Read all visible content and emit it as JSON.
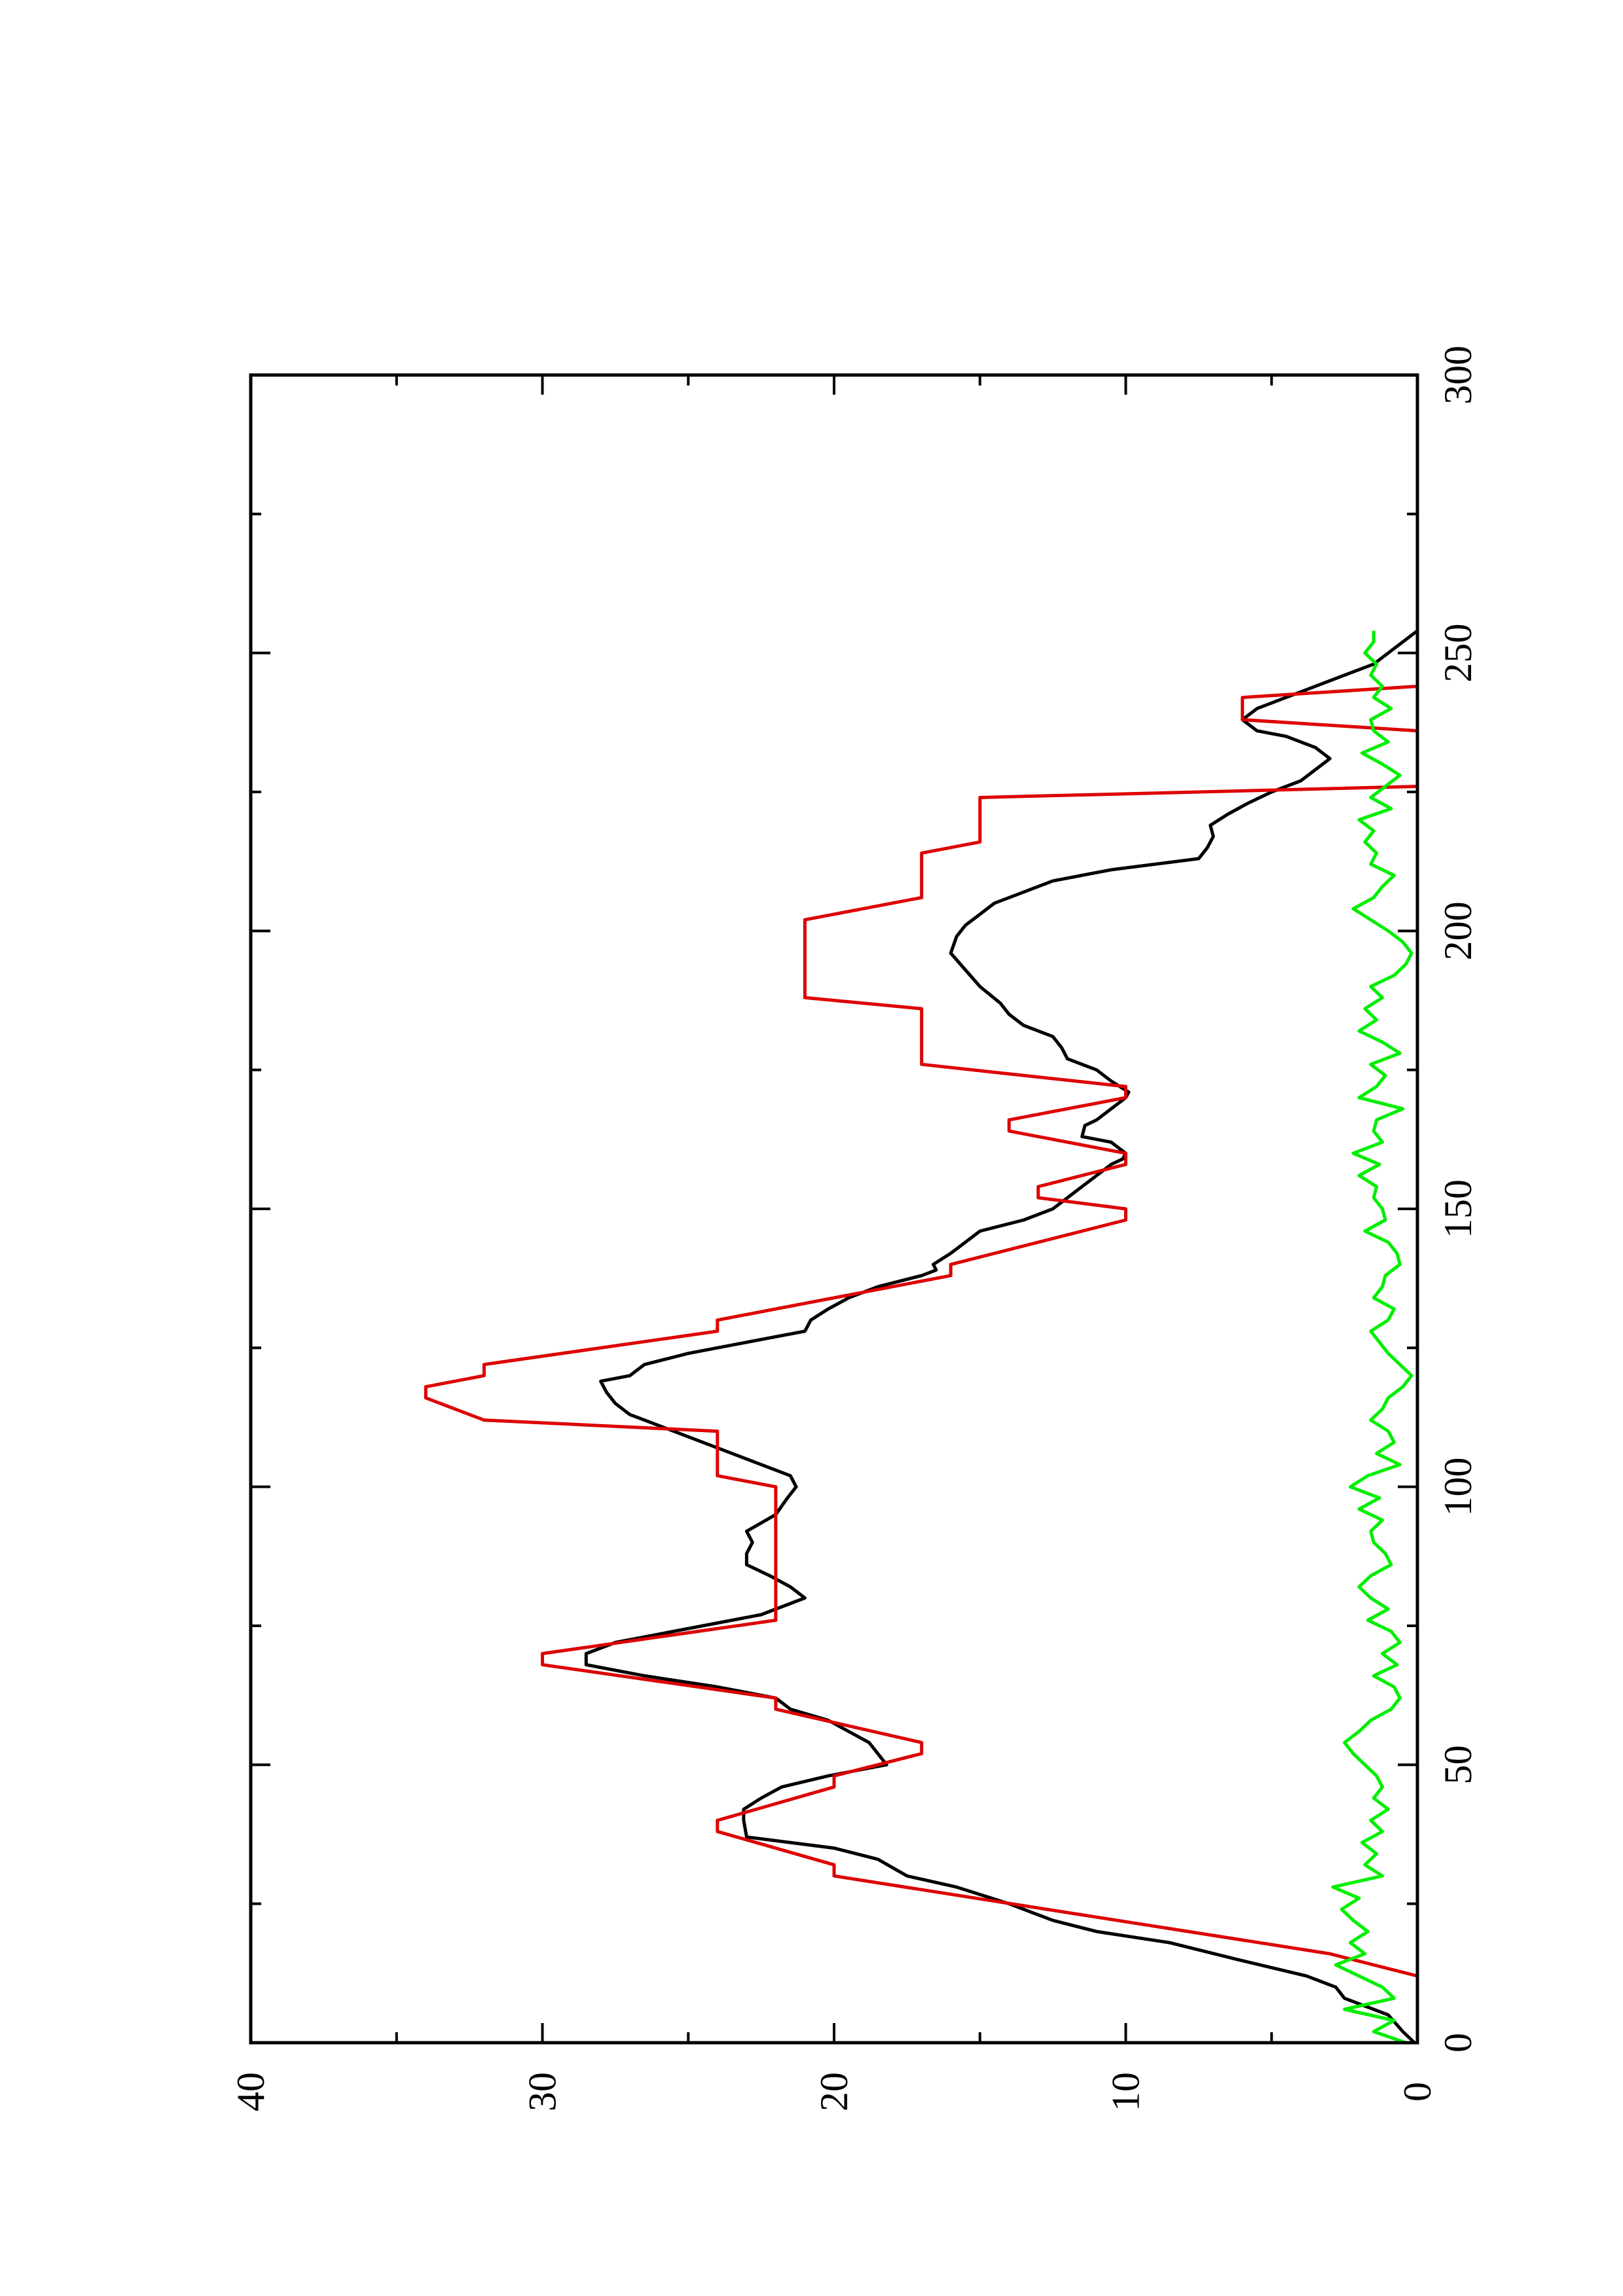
{
  "chart_data": {
    "type": "line",
    "orientation": "rotated-90-ccw",
    "title": "",
    "xlabel": "",
    "ylabel": "",
    "xlim": [
      0,
      300
    ],
    "ylim": [
      0,
      40
    ],
    "xticks": [
      "0",
      "50",
      "100",
      "150",
      "200",
      "250",
      "300"
    ],
    "yticks": [
      "0",
      "10",
      "20",
      "30",
      "40"
    ],
    "grid": false,
    "series": [
      {
        "color": "#000000",
        "x": [
          0,
          2,
          5,
          8,
          10,
          12,
          15,
          18,
          20,
          22,
          25,
          28,
          30,
          33,
          35,
          37,
          40,
          42,
          44,
          46,
          48,
          50,
          52,
          54,
          56,
          58,
          60,
          62,
          64,
          66,
          68,
          70,
          72,
          75,
          77,
          80,
          82,
          84,
          86,
          88,
          90,
          92,
          95,
          98,
          100,
          102,
          104,
          106,
          108,
          110,
          112,
          113,
          115,
          117,
          119,
          120,
          122,
          124,
          126,
          128,
          130,
          132,
          134,
          136,
          138,
          139,
          140,
          142,
          144,
          146,
          148,
          150,
          152,
          154,
          156,
          158,
          159,
          160,
          162,
          163,
          165,
          166,
          168,
          170,
          171,
          173,
          175,
          177,
          179,
          181,
          183,
          185,
          187,
          190,
          193,
          196,
          199,
          201,
          203,
          205,
          207,
          209,
          211,
          213,
          215,
          217,
          219,
          221,
          223,
          225,
          227,
          229,
          231,
          233,
          235,
          236,
          238,
          240,
          242,
          244,
          246,
          248,
          250,
          252,
          254
        ],
        "y": [
          0.1,
          0.5,
          1.0,
          2.5,
          2.8,
          3.8,
          6.2,
          8.5,
          11.0,
          12.5,
          14.0,
          15.8,
          17.5,
          18.5,
          20.0,
          23.0,
          23.1,
          23.1,
          22.5,
          21.8,
          20.2,
          18.2,
          18.5,
          18.8,
          19.5,
          20.2,
          21.5,
          22.0,
          24.0,
          26.5,
          28.5,
          28.5,
          27.5,
          24.5,
          22.5,
          21.0,
          21.5,
          22.2,
          23.0,
          23.0,
          22.8,
          23.0,
          22.0,
          21.6,
          21.3,
          21.5,
          22.5,
          23.5,
          24.5,
          25.5,
          26.5,
          27.0,
          27.5,
          27.8,
          28.0,
          27.0,
          26.5,
          25.0,
          23.0,
          21.0,
          20.8,
          20.2,
          19.5,
          18.5,
          17.0,
          16.5,
          16.6,
          16.0,
          15.5,
          15.0,
          13.5,
          12.5,
          12.0,
          11.5,
          11.0,
          10.5,
          10.1,
          10.0,
          10.5,
          11.5,
          11.4,
          11.0,
          10.5,
          10.0,
          9.9,
          10.5,
          11.0,
          12.0,
          12.2,
          12.5,
          13.5,
          14.0,
          14.3,
          15.0,
          15.5,
          16.0,
          15.8,
          15.5,
          15.0,
          14.5,
          13.5,
          12.5,
          10.5,
          7.5,
          7.2,
          7.0,
          7.1,
          6.5,
          5.8,
          5.0,
          4.0,
          3.5,
          3.0,
          3.5,
          4.5,
          5.5,
          6.0,
          5.5,
          4.5,
          3.5,
          2.5,
          1.5,
          1.0,
          0.5,
          0.0
        ]
      },
      {
        "color": "#dd0000",
        "x": [
          0,
          12,
          16,
          30,
          32,
          38,
          40,
          46,
          48,
          52,
          54,
          60,
          62,
          68,
          70,
          76,
          78,
          100,
          102,
          110,
          112,
          116,
          118,
          120,
          122,
          128,
          130,
          138,
          140,
          148,
          150,
          152,
          154,
          158,
          160,
          164,
          166,
          170,
          172,
          176,
          178,
          186,
          188,
          200,
          202,
          206,
          208,
          214,
          216,
          224,
          226,
          230,
          232,
          236,
          238,
          242,
          244,
          248,
          250
        ],
        "y": [
          0,
          0,
          3,
          20,
          20,
          24,
          24,
          20,
          20,
          17,
          17,
          22,
          22,
          30,
          30,
          22,
          22,
          22,
          24,
          24,
          32,
          34,
          34,
          32,
          32,
          24,
          24,
          16,
          16,
          10,
          10,
          13,
          13,
          10,
          10,
          14,
          14,
          10,
          10,
          17,
          17,
          17,
          21,
          21,
          21,
          17,
          17,
          17,
          15,
          15,
          0,
          0,
          0,
          0,
          6,
          6,
          0,
          0,
          0
        ]
      },
      {
        "color": "#00ee00",
        "x": [
          0,
          2,
          4,
          6,
          8,
          10,
          12,
          14,
          16,
          18,
          20,
          22,
          24,
          26,
          28,
          30,
          32,
          34,
          36,
          38,
          40,
          42,
          44,
          46,
          48,
          50,
          52,
          54,
          56,
          58,
          60,
          62,
          64,
          66,
          68,
          70,
          72,
          74,
          76,
          78,
          80,
          82,
          84,
          86,
          88,
          90,
          92,
          94,
          96,
          98,
          100,
          102,
          104,
          106,
          108,
          110,
          112,
          114,
          116,
          118,
          120,
          122,
          124,
          126,
          128,
          130,
          132,
          134,
          136,
          138,
          140,
          142,
          144,
          146,
          148,
          150,
          152,
          154,
          156,
          158,
          160,
          162,
          164,
          166,
          168,
          170,
          172,
          174,
          176,
          178,
          180,
          182,
          184,
          186,
          188,
          190,
          192,
          194,
          196,
          198,
          200,
          202,
          204,
          206,
          208,
          210,
          212,
          214,
          216,
          218,
          220,
          222,
          224,
          226,
          228,
          230,
          232,
          234,
          236,
          238,
          240,
          242,
          244,
          246,
          248,
          250,
          252,
          254
        ],
        "y": [
          0.4,
          1.5,
          0.8,
          2.5,
          0.8,
          1.2,
          2.0,
          2.8,
          1.8,
          2.3,
          1.7,
          2.2,
          2.6,
          2.0,
          2.9,
          1.2,
          1.8,
          1.4,
          1.9,
          1.2,
          1.6,
          1.0,
          1.5,
          1.2,
          1.4,
          1.8,
          2.2,
          2.5,
          2.0,
          1.6,
          0.9,
          0.6,
          0.8,
          1.5,
          0.7,
          1.2,
          0.6,
          0.9,
          1.7,
          1.0,
          1.6,
          2.0,
          1.6,
          0.9,
          1.1,
          1.5,
          1.6,
          1.2,
          2.0,
          1.3,
          2.3,
          1.7,
          0.6,
          1.4,
          0.8,
          1.0,
          1.6,
          1.2,
          1.0,
          0.5,
          0.2,
          0.6,
          1.0,
          1.3,
          1.6,
          1.0,
          0.8,
          1.5,
          1.2,
          1.1,
          0.6,
          0.7,
          1.0,
          1.8,
          1.1,
          1.2,
          1.5,
          1.4,
          2.0,
          1.3,
          2.2,
          1.2,
          1.5,
          1.4,
          0.5,
          2.0,
          1.4,
          1.1,
          1.6,
          0.6,
          1.2,
          2.0,
          1.4,
          1.8,
          1.2,
          1.6,
          0.8,
          0.4,
          0.2,
          0.5,
          1.0,
          1.6,
          2.2,
          1.5,
          1.2,
          0.8,
          1.6,
          1.4,
          1.8,
          1.5,
          2.0,
          0.9,
          1.6,
          1.1,
          0.6,
          1.2,
          1.9,
          1.0,
          1.5,
          1.6,
          0.9,
          1.5,
          1.2,
          1.6,
          1.4,
          1.8,
          1.5,
          1.5
        ]
      }
    ]
  }
}
